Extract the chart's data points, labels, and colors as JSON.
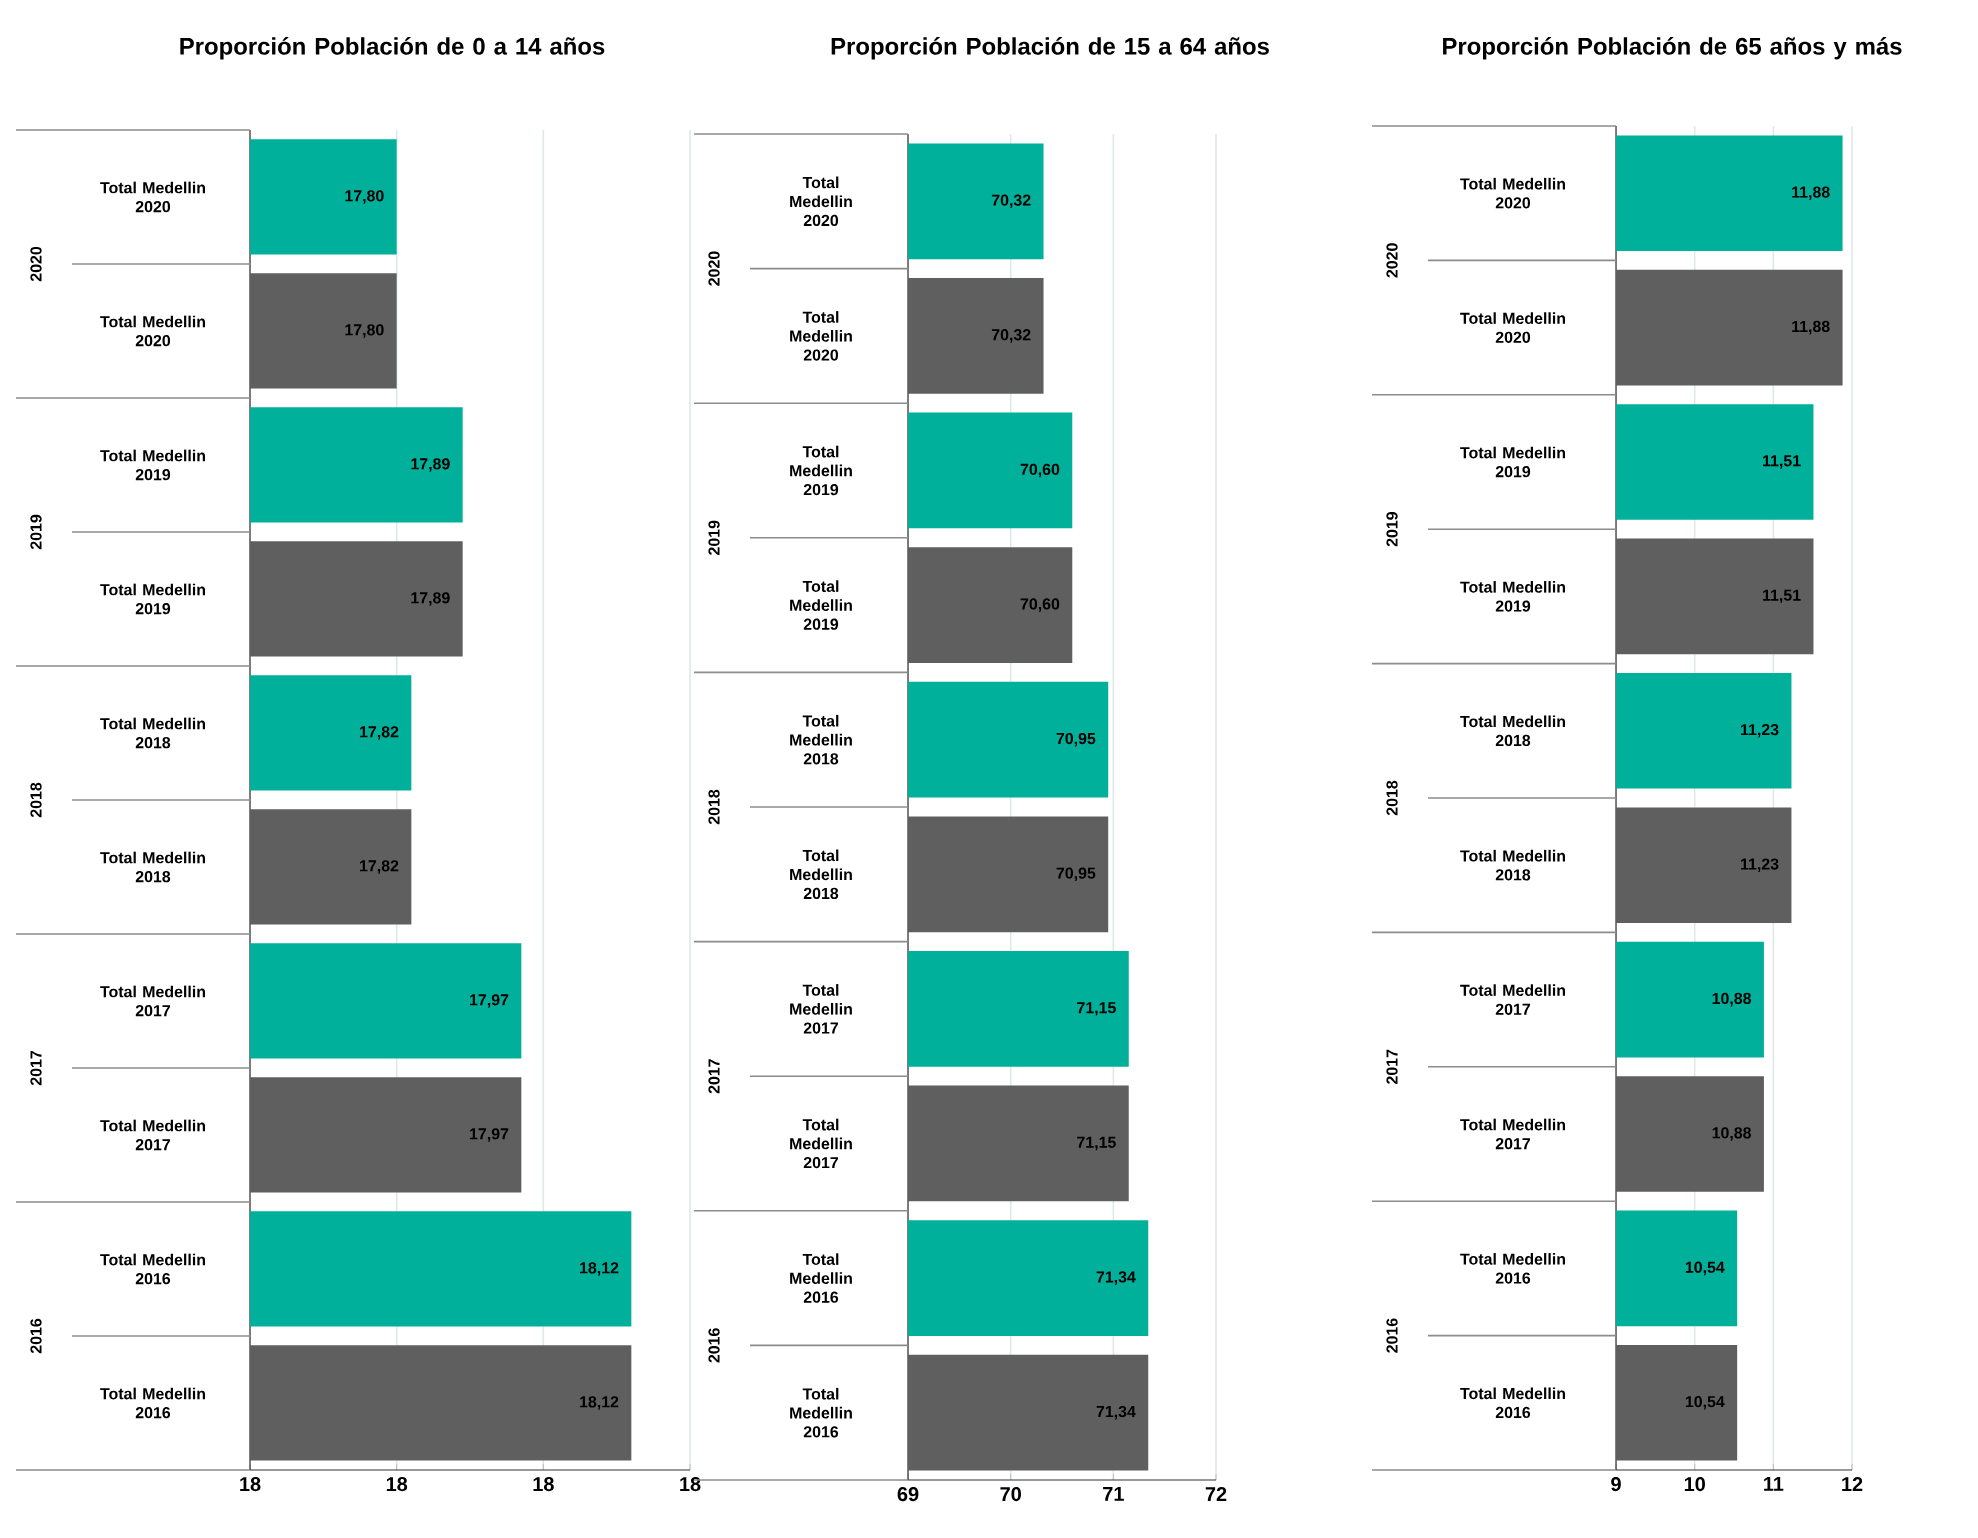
{
  "chart_data": [
    {
      "type": "bar",
      "orientation": "horizontal",
      "title": "Proporción Población de 0 a 14 años",
      "categories": [
        "Total Medellin 2020",
        "Total Medellin 2020",
        "Total Medellin 2019",
        "Total Medellin 2019",
        "Total Medellin 2018",
        "Total Medellin 2018",
        "Total Medellin 2017",
        "Total Medellin 2017",
        "Total Medellin 2016",
        "Total Medellin 2016"
      ],
      "values": [
        17.8,
        17.8,
        17.89,
        17.89,
        17.82,
        17.82,
        17.97,
        17.97,
        18.12,
        18.12
      ],
      "colors": [
        "#00b09a",
        "#5f5f5f",
        "#00b09a",
        "#5f5f5f",
        "#00b09a",
        "#5f5f5f",
        "#00b09a",
        "#5f5f5f",
        "#00b09a",
        "#5f5f5f"
      ],
      "value_labels": [
        "17,80",
        "17,80",
        "17,89",
        "17,89",
        "17,82",
        "17,82",
        "17,97",
        "17,97",
        "18,12",
        "18,12"
      ],
      "xlim": [
        17.6,
        18.2
      ],
      "xticks": [
        {
          "value": 17.6,
          "label": "18"
        },
        {
          "value": 17.8,
          "label": "18"
        },
        {
          "value": 18.0,
          "label": "18"
        },
        {
          "value": 18.2,
          "label": "18"
        }
      ],
      "grid": "x",
      "annotations": [
        "2020",
        "2019",
        "2018",
        "2017",
        "2016"
      ]
    },
    {
      "type": "bar",
      "orientation": "horizontal",
      "title": "Proporción Población de 15 a 64 años",
      "categories": [
        "Total Medellin 2020",
        "Total Medellin 2020",
        "Total Medellin 2019",
        "Total Medellin 2019",
        "Total Medellin 2018",
        "Total Medellin 2018",
        "Total Medellin 2017",
        "Total Medellin 2017",
        "Total Medellin 2016",
        "Total Medellin 2016"
      ],
      "values": [
        70.32,
        70.32,
        70.6,
        70.6,
        70.95,
        70.95,
        71.15,
        71.15,
        71.34,
        71.34
      ],
      "colors": [
        "#00b09a",
        "#5f5f5f",
        "#00b09a",
        "#5f5f5f",
        "#00b09a",
        "#5f5f5f",
        "#00b09a",
        "#5f5f5f",
        "#00b09a",
        "#5f5f5f"
      ],
      "value_labels": [
        "70,32",
        "70,32",
        "70,60",
        "70,60",
        "70,95",
        "70,95",
        "71,15",
        "71,15",
        "71,34",
        "71,34"
      ],
      "xlim": [
        69,
        72
      ],
      "xticks": [
        69,
        70,
        71,
        72
      ],
      "grid": "x",
      "annotations": [
        "2020",
        "2019",
        "2018",
        "2017",
        "2016"
      ]
    },
    {
      "type": "bar",
      "orientation": "horizontal",
      "title": "Proporción Población de 65 años y más",
      "categories": [
        "Total Medellin 2020",
        "Total Medellin 2020",
        "Total Medellin 2019",
        "Total Medellin 2019",
        "Total Medellin 2018",
        "Total Medellin 2018",
        "Total Medellin 2017",
        "Total Medellin 2017",
        "Total Medellin 2016",
        "Total Medellin 2016"
      ],
      "values": [
        11.88,
        11.88,
        11.51,
        11.51,
        11.23,
        11.23,
        10.88,
        10.88,
        10.54,
        10.54
      ],
      "colors": [
        "#00b09a",
        "#5f5f5f",
        "#00b09a",
        "#5f5f5f",
        "#00b09a",
        "#5f5f5f",
        "#00b09a",
        "#5f5f5f",
        "#00b09a",
        "#5f5f5f"
      ],
      "value_labels": [
        "11,88",
        "11,88",
        "11,51",
        "11,51",
        "11,23",
        "11,23",
        "10,88",
        "10,88",
        "10,54",
        "10,54"
      ],
      "xlim": [
        9,
        12
      ],
      "xticks": [
        9,
        10,
        11,
        12
      ],
      "grid": "x",
      "annotations": [
        "2020",
        "2019",
        "2018",
        "2017",
        "2016"
      ]
    }
  ]
}
